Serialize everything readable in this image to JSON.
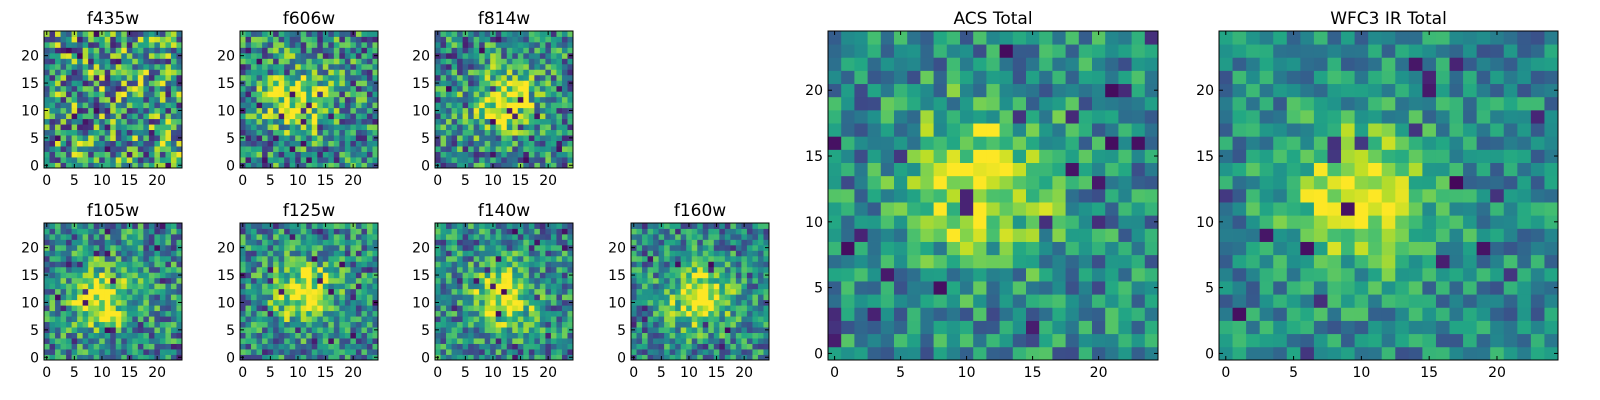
{
  "chart_data": [
    {
      "type": "heatmap",
      "title": "f435w",
      "grid_size": 25,
      "colormap": "viridis",
      "peak": null,
      "noise": 1.0,
      "seed": 11,
      "xticks": [
        0,
        5,
        10,
        15,
        20
      ],
      "yticks": [
        0,
        5,
        10,
        15,
        20
      ]
    },
    {
      "type": "heatmap",
      "title": "f606w",
      "grid_size": 25,
      "colormap": "viridis",
      "peak": [
        10,
        12
      ],
      "noise": 0.85,
      "seed": 23,
      "xticks": [
        0,
        5,
        10,
        15,
        20
      ],
      "yticks": [
        0,
        5,
        10,
        15,
        20
      ]
    },
    {
      "type": "heatmap",
      "title": "f814w",
      "grid_size": 25,
      "colormap": "viridis",
      "peak": [
        12,
        12
      ],
      "noise": 0.8,
      "seed": 37,
      "xticks": [
        0,
        5,
        10,
        15,
        20
      ],
      "yticks": [
        0,
        5,
        10,
        15,
        20
      ]
    },
    {
      "type": "heatmap",
      "title": "f105w",
      "grid_size": 25,
      "colormap": "viridis",
      "peak": [
        10,
        11
      ],
      "noise": 0.75,
      "seed": 41,
      "xticks": [
        0,
        5,
        10,
        15,
        20
      ],
      "yticks": [
        0,
        5,
        10,
        15,
        20
      ]
    },
    {
      "type": "heatmap",
      "title": "f125w",
      "grid_size": 25,
      "colormap": "viridis",
      "peak": [
        11,
        12
      ],
      "noise": 0.7,
      "seed": 53,
      "xticks": [
        0,
        5,
        10,
        15,
        20
      ],
      "yticks": [
        0,
        5,
        10,
        15,
        20
      ]
    },
    {
      "type": "heatmap",
      "title": "f140w",
      "grid_size": 25,
      "colormap": "viridis",
      "peak": [
        12,
        11
      ],
      "noise": 0.7,
      "seed": 67,
      "xticks": [
        0,
        5,
        10,
        15,
        20
      ],
      "yticks": [
        0,
        5,
        10,
        15,
        20
      ]
    },
    {
      "type": "heatmap",
      "title": "f160w",
      "grid_size": 25,
      "colormap": "viridis",
      "peak": [
        12,
        11
      ],
      "noise": 0.65,
      "seed": 79,
      "xticks": [
        0,
        5,
        10,
        15,
        20
      ],
      "yticks": [
        0,
        5,
        10,
        15,
        20
      ]
    },
    {
      "type": "heatmap",
      "title": "ACS Total",
      "grid_size": 25,
      "colormap": "viridis",
      "peak": [
        11,
        13
      ],
      "noise": 0.6,
      "seed": 83,
      "xticks": [
        0,
        5,
        10,
        15,
        20
      ],
      "yticks": [
        0,
        5,
        10,
        15,
        20
      ]
    },
    {
      "type": "heatmap",
      "title": "WFC3 IR Total",
      "grid_size": 25,
      "colormap": "viridis",
      "peak": [
        10,
        12
      ],
      "noise": 0.5,
      "seed": 97,
      "xticks": [
        0,
        5,
        10,
        15,
        20
      ],
      "yticks": [
        0,
        5,
        10,
        15,
        20
      ]
    }
  ]
}
